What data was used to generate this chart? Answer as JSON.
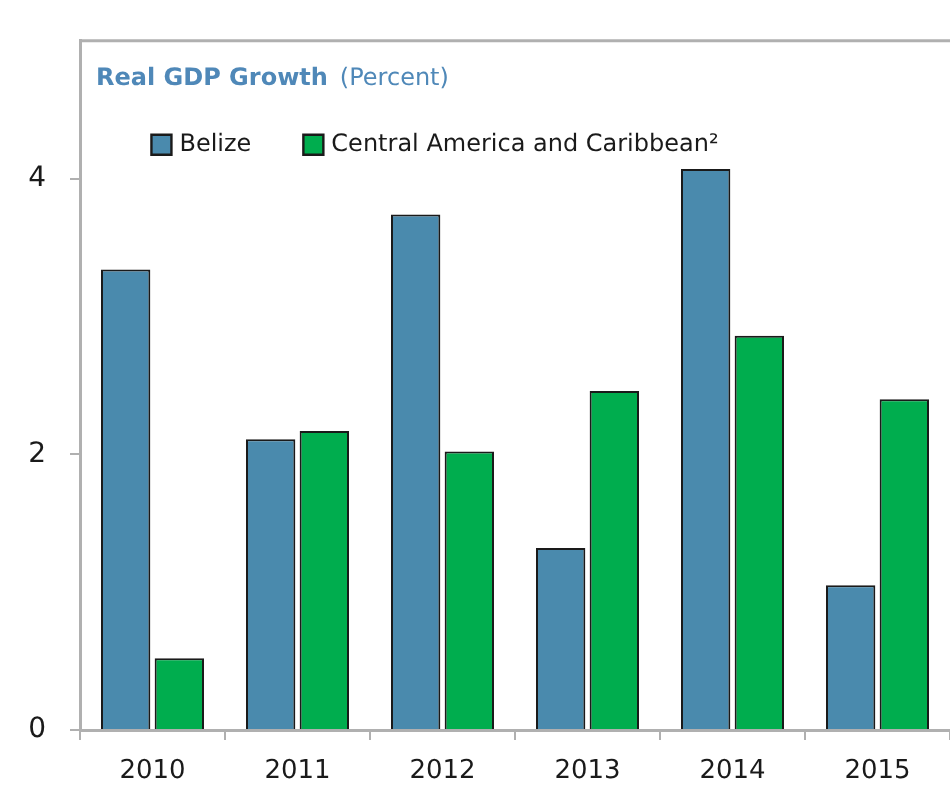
{
  "chart_data": {
    "type": "bar",
    "title": "Real GDP Growth",
    "subtitle": "(Percent)",
    "categories": [
      "2010",
      "2011",
      "2012",
      "2013",
      "2014",
      "2015"
    ],
    "series": [
      {
        "name": "Belize",
        "color": "#4a8aad",
        "values": [
          3.34,
          2.11,
          3.74,
          1.32,
          4.07,
          1.05
        ]
      },
      {
        "name": "Central America and Caribbean²",
        "color": "#00ad4e",
        "values": [
          0.52,
          2.17,
          2.02,
          2.46,
          2.86,
          2.4
        ]
      }
    ],
    "ylim": [
      0,
      5
    ],
    "yticks": [
      0,
      2,
      4
    ],
    "grid": false,
    "legend": "top"
  }
}
